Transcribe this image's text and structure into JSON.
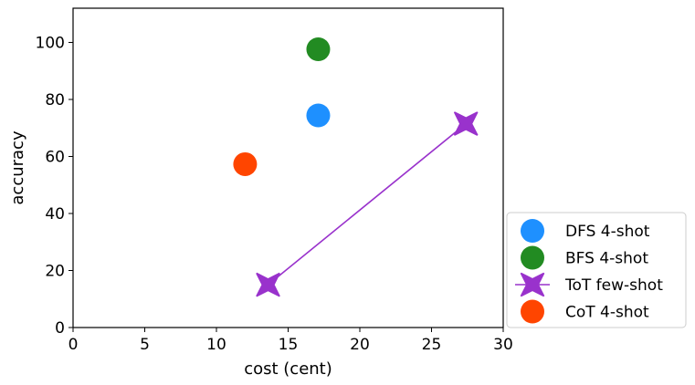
{
  "chart_data": {
    "type": "scatter",
    "xlabel": "cost (cent)",
    "ylabel": "accuracy",
    "xlim": [
      0,
      30
    ],
    "ylim": [
      0,
      112
    ],
    "xticks": [
      0,
      5,
      10,
      15,
      20,
      25,
      30
    ],
    "yticks": [
      0,
      20,
      40,
      60,
      80,
      100
    ],
    "grid": false,
    "legend_position": "lower-right-outside",
    "series": [
      {
        "name": "DFS 4-shot",
        "marker": "circle",
        "color": "#1e90ff",
        "connected": false,
        "points": [
          {
            "x": 17.1,
            "y": 74.4
          }
        ]
      },
      {
        "name": "BFS 4-shot",
        "marker": "circle",
        "color": "#228b22",
        "connected": false,
        "points": [
          {
            "x": 17.1,
            "y": 97.6
          }
        ]
      },
      {
        "name": "ToT few-shot",
        "marker": "x",
        "color": "#9932cc",
        "connected": true,
        "points": [
          {
            "x": 13.6,
            "y": 15.0
          },
          {
            "x": 27.4,
            "y": 71.5
          }
        ]
      },
      {
        "name": "CoT 4-shot",
        "marker": "circle",
        "color": "#ff4500",
        "connected": false,
        "points": [
          {
            "x": 12.0,
            "y": 57.3
          }
        ]
      }
    ]
  }
}
